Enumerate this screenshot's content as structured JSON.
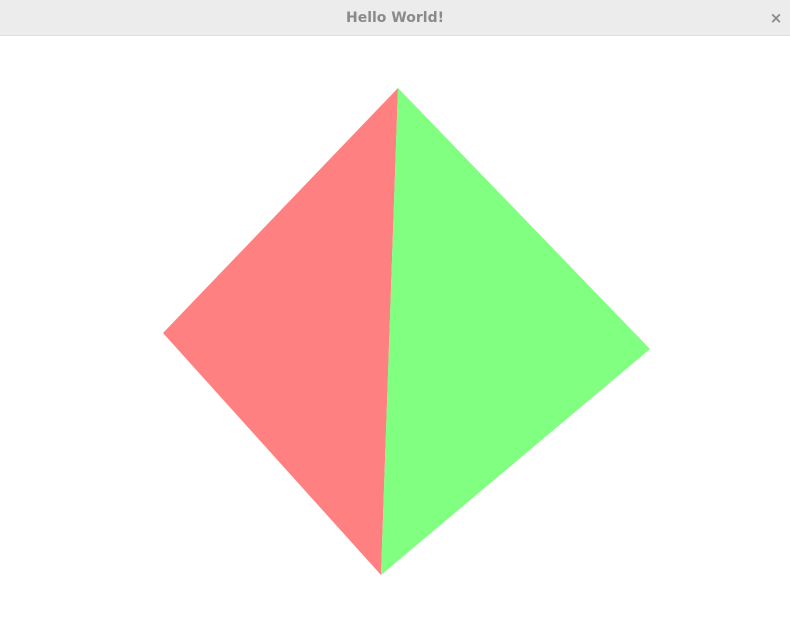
{
  "window": {
    "title": "Hello World!",
    "close_glyph": "×",
    "close_icon": "close-icon"
  },
  "scene": {
    "colors": {
      "left_face": "#ff8080",
      "right_face": "#80ff80",
      "background": "#ffffff",
      "titlebar": "#ececec",
      "title_text": "#8a8a8a"
    }
  }
}
